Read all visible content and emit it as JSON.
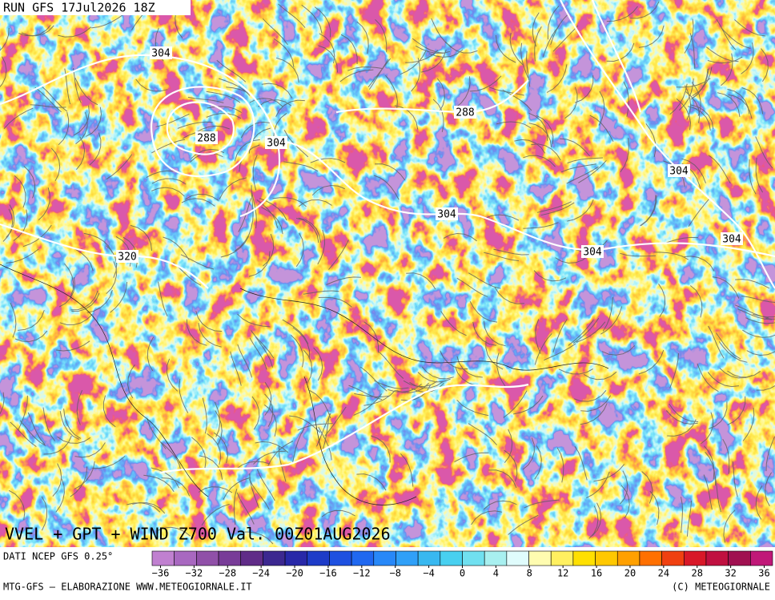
{
  "header": {
    "run": "RUN GFS 17Jul2026 18Z"
  },
  "contour_labels": [
    304,
    288,
    304,
    288,
    304,
    304,
    304,
    304,
    320
  ],
  "map_title": "VVEL + GPT + WIND Z700 Val. 00Z01AUG2026",
  "footer": {
    "source": "DATI NCEP GFS 0.25°",
    "credit": "MTG-GFS — ELABORAZIONE WWW.METEOGIORNALE.IT",
    "copyright": "(C) METEOGIORNALE"
  },
  "colorbar": {
    "lim": [
      -37,
      37
    ],
    "colors": [
      "#c080d0",
      "#a868c0",
      "#9050a8",
      "#783c98",
      "#602c88",
      "#3c2890",
      "#2828a8",
      "#1e3cc8",
      "#1e50e0",
      "#2068f0",
      "#2888f8",
      "#30a0f8",
      "#38b8f0",
      "#48d0f0",
      "#70e0f0",
      "#a8f0f0",
      "#e0fcfc",
      "#fffcb0",
      "#fff060",
      "#ffe000",
      "#ffc800",
      "#ffa000",
      "#ff7000",
      "#f04010",
      "#d81828",
      "#c01040",
      "#a01050",
      "#c01878"
    ],
    "ticks": [
      {
        "value": -36,
        "label": "−36"
      },
      {
        "value": -32,
        "label": "−32"
      },
      {
        "value": -28,
        "label": "−28"
      },
      {
        "value": -24,
        "label": "−24"
      },
      {
        "value": -20,
        "label": "−20"
      },
      {
        "value": -16,
        "label": "−16"
      },
      {
        "value": -12,
        "label": "−12"
      },
      {
        "value": -8,
        "label": "−8"
      },
      {
        "value": -4,
        "label": "−4"
      },
      0,
      4,
      8,
      12,
      16,
      20,
      24,
      28,
      32,
      36
    ]
  }
}
